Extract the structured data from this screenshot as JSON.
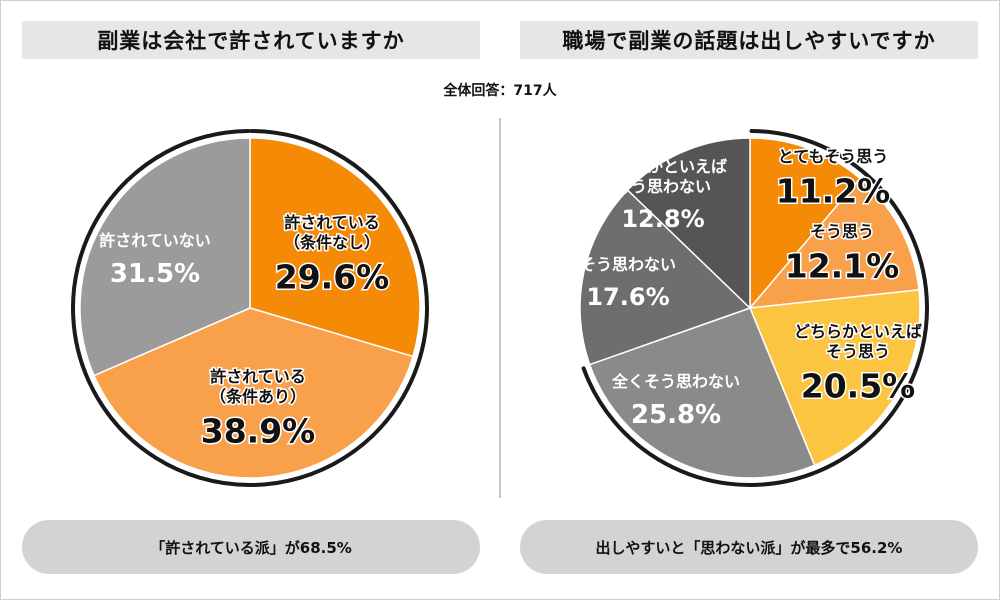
{
  "titles": {
    "left": "副業は会社で許されていますか",
    "right": "職場で副業の話題は出しやすいですか"
  },
  "total_label": "全体回答：717人",
  "summary": {
    "left": "「許されている派」が68.5%",
    "right": "出しやすいと「思わない派」が最多で56.2%"
  },
  "colors": {
    "dark_orange": "#f58a07",
    "light_orange": "#f9a14a",
    "yellow": "#fcc541",
    "gray": "#9b9b9b",
    "mid_gray": "#8a8a8a",
    "dark_gray": "#6e6e6e",
    "darkest_gray": "#555555"
  },
  "chart_data": [
    {
      "type": "pie",
      "title": "副業は会社で許されていますか",
      "slices": [
        {
          "label": "許されている（条件なし）",
          "label_lines": [
            "許されている",
            "（条件なし）"
          ],
          "value": 29.6,
          "value_label": "29.6%",
          "color": "#f58a07",
          "label_color": "#111111"
        },
        {
          "label": "許されている（条件あり）",
          "label_lines": [
            "許されている",
            "（条件あり）"
          ],
          "value": 38.9,
          "value_label": "38.9%",
          "color": "#f9a14a",
          "label_color": "#111111"
        },
        {
          "label": "許されていない",
          "label_lines": [
            "許されていない"
          ],
          "value": 31.5,
          "value_label": "31.5%",
          "color": "#9b9b9b",
          "label_color": "#ffffff"
        }
      ]
    },
    {
      "type": "pie",
      "title": "職場で副業の話題は出しやすいですか",
      "slices": [
        {
          "label": "とてもそう思う",
          "label_lines": [
            "とてもそう思う"
          ],
          "value": 11.2,
          "value_label": "11.2%",
          "color": "#f58a07",
          "label_color": "#111111"
        },
        {
          "label": "そう思う",
          "label_lines": [
            "そう思う"
          ],
          "value": 12.1,
          "value_label": "12.1%",
          "color": "#f9a14a",
          "label_color": "#111111"
        },
        {
          "label": "どちらかといえばそう思う",
          "label_lines": [
            "どちらかといえば",
            "そう思う"
          ],
          "value": 20.5,
          "value_label": "20.5%",
          "color": "#fcc541",
          "label_color": "#111111"
        },
        {
          "label": "全くそう思わない",
          "label_lines": [
            "全くそう思わない"
          ],
          "value": 25.8,
          "value_label": "25.8%",
          "color": "#8a8a8a",
          "label_color": "#ffffff"
        },
        {
          "label": "そう思わない",
          "label_lines": [
            "そう思わない"
          ],
          "value": 17.6,
          "value_label": "17.6%",
          "color": "#6e6e6e",
          "label_color": "#ffffff"
        },
        {
          "label": "どちらかといえばそう思わない",
          "label_lines": [
            "どちらかといえば",
            "そう思わない"
          ],
          "value": 12.8,
          "value_label": "12.8%",
          "color": "#555555",
          "label_color": "#ffffff"
        }
      ]
    }
  ]
}
